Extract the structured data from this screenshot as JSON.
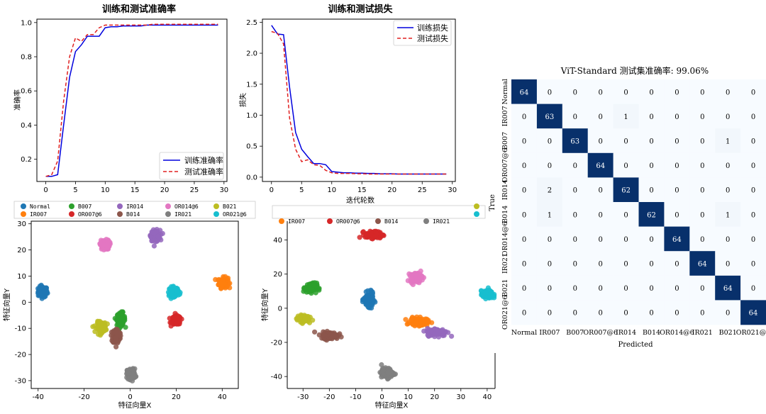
{
  "chart_data": [
    {
      "type": "line",
      "title": "训练和测试准确率",
      "xlabel": "",
      "ylabel": "准确率",
      "xlim": [
        -1.5,
        30.5
      ],
      "ylim": [
        0.07,
        1.02
      ],
      "xticks": [
        0,
        5,
        10,
        15,
        20,
        25,
        30
      ],
      "yticks": [
        0.2,
        0.4,
        0.6,
        0.8,
        1.0
      ],
      "ytick_labels": [
        "0.2",
        "0.4",
        "0.6",
        "0.8",
        "1.0"
      ],
      "legend_position": "lower-right",
      "x": [
        0,
        1,
        2,
        3,
        4,
        5,
        6,
        7,
        8,
        9,
        10,
        11,
        12,
        13,
        14,
        15,
        16,
        17,
        18,
        19,
        20,
        21,
        22,
        23,
        24,
        25,
        26,
        27,
        28,
        29
      ],
      "series": [
        {
          "name": "训练准确率",
          "color": "#0000dd",
          "dash": "solid",
          "values": [
            0.1,
            0.1,
            0.11,
            0.4,
            0.68,
            0.83,
            0.87,
            0.92,
            0.92,
            0.92,
            0.97,
            0.975,
            0.975,
            0.98,
            0.98,
            0.98,
            0.98,
            0.985,
            0.985,
            0.985,
            0.985,
            0.985,
            0.985,
            0.985,
            0.985,
            0.985,
            0.985,
            0.985,
            0.985,
            0.985
          ]
        },
        {
          "name": "测试准确率",
          "color": "#e02020",
          "dash": "dashed",
          "values": [
            0.1,
            0.11,
            0.19,
            0.54,
            0.8,
            0.91,
            0.89,
            0.93,
            0.93,
            0.97,
            0.985,
            0.985,
            0.985,
            0.985,
            0.985,
            0.985,
            0.985,
            0.985,
            0.99,
            0.99,
            0.99,
            0.99,
            0.99,
            0.99,
            0.99,
            0.99,
            0.99,
            0.99,
            0.99,
            0.99
          ]
        }
      ]
    },
    {
      "type": "line",
      "title": "训练和测试损失",
      "xlabel": "迭代轮数",
      "ylabel": "损失",
      "xlim": [
        -1.5,
        30.5
      ],
      "ylim": [
        -0.07,
        2.55
      ],
      "xticks": [
        0,
        5,
        10,
        15,
        20,
        25,
        30
      ],
      "yticks": [
        0,
        0.5,
        1.0,
        1.5,
        2.0,
        2.5
      ],
      "ytick_labels": [
        "0.0",
        "0.5",
        "1.0",
        "1.5",
        "2.0",
        "2.5"
      ],
      "legend_position": "upper-right",
      "x": [
        0,
        1,
        2,
        3,
        4,
        5,
        6,
        7,
        8,
        9,
        10,
        11,
        12,
        13,
        14,
        15,
        16,
        17,
        18,
        19,
        20,
        21,
        22,
        23,
        24,
        25,
        26,
        27,
        28,
        29
      ],
      "series": [
        {
          "name": "训练损失",
          "color": "#0000dd",
          "dash": "solid",
          "values": [
            2.45,
            2.31,
            2.3,
            1.45,
            0.72,
            0.45,
            0.33,
            0.22,
            0.22,
            0.2,
            0.09,
            0.08,
            0.07,
            0.07,
            0.065,
            0.065,
            0.06,
            0.06,
            0.055,
            0.055,
            0.055,
            0.05,
            0.05,
            0.05,
            0.05,
            0.05,
            0.05,
            0.05,
            0.05,
            0.05
          ]
        },
        {
          "name": "测试损失",
          "color": "#e02020",
          "dash": "dashed",
          "values": [
            2.35,
            2.32,
            2.15,
            0.95,
            0.45,
            0.25,
            0.28,
            0.2,
            0.19,
            0.11,
            0.07,
            0.06,
            0.06,
            0.06,
            0.055,
            0.055,
            0.05,
            0.05,
            0.05,
            0.05,
            0.05,
            0.05,
            0.05,
            0.05,
            0.05,
            0.05,
            0.05,
            0.05,
            0.05,
            0.05
          ]
        }
      ]
    },
    {
      "type": "scatter",
      "title": "",
      "xlabel": "特征向量X",
      "ylabel": "特征向量Y",
      "xlim": [
        -43,
        47
      ],
      "ylim": [
        -33,
        31
      ],
      "xticks": [
        -40,
        -20,
        0,
        20,
        40
      ],
      "yticks": [
        -30,
        -20,
        -10,
        0,
        10,
        20,
        30
      ],
      "legend_position": "top",
      "legend_rows": [
        [
          "Normal",
          "B007",
          "IR014",
          "OR014@6",
          "B021"
        ],
        [
          "IR007",
          "OR007@6",
          "B014",
          "IR021",
          "OR021@6"
        ]
      ],
      "series": [
        {
          "name": "Normal",
          "color": "#1f77b4",
          "center": [
            -38,
            4
          ],
          "spread": [
            1.8,
            1.8
          ]
        },
        {
          "name": "IR007",
          "color": "#ff7f0e",
          "center": [
            40.5,
            7.5
          ],
          "spread": [
            1.8,
            1.8
          ]
        },
        {
          "name": "B007",
          "color": "#2ca02c",
          "center": [
            -4,
            -6.5
          ],
          "spread": [
            1.6,
            2.2
          ]
        },
        {
          "name": "OR007@6",
          "color": "#d62728",
          "center": [
            20,
            -7
          ],
          "spread": [
            1.8,
            1.5
          ]
        },
        {
          "name": "IR014",
          "color": "#9467bd",
          "center": [
            11,
            25.5
          ],
          "spread": [
            1.8,
            1.8
          ]
        },
        {
          "name": "B014",
          "color": "#8c564b",
          "center": [
            -6,
            -13
          ],
          "spread": [
            1.4,
            2.6
          ]
        },
        {
          "name": "OR014@6",
          "color": "#e377c2",
          "center": [
            -11,
            22
          ],
          "spread": [
            1.8,
            1.6
          ]
        },
        {
          "name": "IR021",
          "color": "#7f7f7f",
          "center": [
            0.5,
            -27.5
          ],
          "spread": [
            1.6,
            1.8
          ]
        },
        {
          "name": "B021",
          "color": "#bcbd22",
          "center": [
            -12.5,
            -9.5
          ],
          "spread": [
            1.8,
            1.8
          ]
        },
        {
          "name": "OR021@6",
          "color": "#17becf",
          "center": [
            19,
            4
          ],
          "spread": [
            1.8,
            1.6
          ]
        }
      ]
    },
    {
      "type": "scatter",
      "title": "",
      "xlabel": "特征向量X",
      "ylabel": "特征向量Y",
      "xlim": [
        -36,
        43
      ],
      "ylim": [
        -47,
        51
      ],
      "xticks": [
        -30,
        -20,
        -10,
        0,
        10,
        20,
        30,
        40
      ],
      "yticks": [
        -40,
        -20,
        0,
        20,
        40
      ],
      "legend_position": "top",
      "legend_rows": [
        [
          "",
          "",
          "",
          "",
          ""
        ],
        [
          "IR007",
          "OR007@6",
          "B014",
          "IR021",
          ""
        ]
      ],
      "series": [
        {
          "name": "Normal",
          "color": "#1f77b4",
          "center": [
            -5,
            5
          ],
          "spread": [
            1.6,
            3.5
          ]
        },
        {
          "name": "IR007",
          "color": "#ff7f0e",
          "center": [
            14,
            -8
          ],
          "spread": [
            3.0,
            2.0
          ]
        },
        {
          "name": "B007",
          "color": "#2ca02c",
          "center": [
            -27,
            12
          ],
          "spread": [
            2.0,
            2.5
          ]
        },
        {
          "name": "OR007@6",
          "color": "#d62728",
          "center": [
            -3,
            43
          ],
          "spread": [
            3.0,
            1.8
          ]
        },
        {
          "name": "IR014",
          "color": "#9467bd",
          "center": [
            21,
            -14
          ],
          "spread": [
            3.5,
            2.0
          ]
        },
        {
          "name": "B014",
          "color": "#8c564b",
          "center": [
            -20,
            -16
          ],
          "spread": [
            3.0,
            1.8
          ]
        },
        {
          "name": "OR014@6",
          "color": "#e377c2",
          "center": [
            13,
            18
          ],
          "spread": [
            2.0,
            2.5
          ]
        },
        {
          "name": "IR021",
          "color": "#7f7f7f",
          "center": [
            2,
            -38
          ],
          "spread": [
            2.0,
            2.5
          ]
        },
        {
          "name": "B021",
          "color": "#bcbd22",
          "center": [
            -30,
            -6
          ],
          "spread": [
            2.0,
            1.8
          ]
        },
        {
          "name": "OR021@6",
          "color": "#17becf",
          "center": [
            40,
            8
          ],
          "spread": [
            2.0,
            2.0
          ]
        }
      ]
    },
    {
      "type": "heatmap",
      "title": "ViT-Standard 测试集准确率: 99.06%",
      "xlabel": "Predicted",
      "ylabel": "True",
      "labels": [
        "Normal",
        "IR007",
        "B007",
        "OR007@6",
        "IR014",
        "B014",
        "OR014@6",
        "IR021",
        "B021",
        "OR021@6"
      ],
      "matrix": [
        [
          64,
          0,
          0,
          0,
          0,
          0,
          0,
          0,
          0,
          0
        ],
        [
          0,
          63,
          0,
          0,
          1,
          0,
          0,
          0,
          0,
          0
        ],
        [
          0,
          0,
          63,
          0,
          0,
          0,
          0,
          0,
          1,
          0
        ],
        [
          0,
          0,
          0,
          64,
          0,
          0,
          0,
          0,
          0,
          0
        ],
        [
          0,
          2,
          0,
          0,
          62,
          0,
          0,
          0,
          0,
          0
        ],
        [
          0,
          1,
          0,
          0,
          0,
          62,
          0,
          0,
          1,
          0
        ],
        [
          0,
          0,
          0,
          0,
          0,
          0,
          64,
          0,
          0,
          0
        ],
        [
          0,
          0,
          0,
          0,
          0,
          0,
          0,
          64,
          0,
          0
        ],
        [
          0,
          0,
          0,
          0,
          0,
          0,
          0,
          0,
          64,
          0
        ],
        [
          0,
          0,
          0,
          0,
          0,
          0,
          0,
          0,
          0,
          64
        ]
      ],
      "colormap": {
        "low": "#f7fbff",
        "high": "#08306b"
      },
      "vmax": 64
    }
  ]
}
